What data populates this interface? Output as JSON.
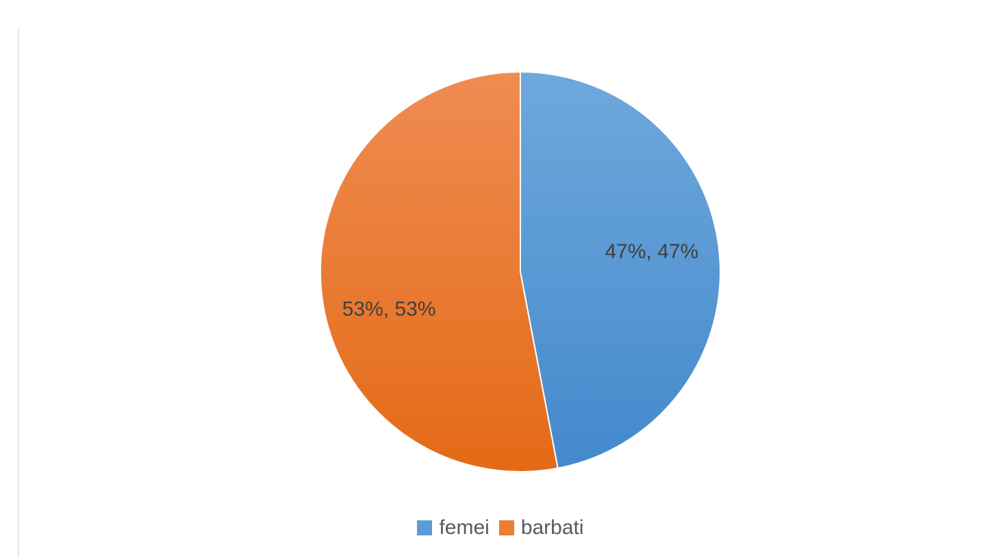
{
  "chart_data": {
    "type": "pie",
    "categories": [
      "femei",
      "barbati"
    ],
    "values": [
      47,
      53
    ],
    "data_labels": [
      "47%, 47%",
      "53%, 53%"
    ],
    "colors": [
      "#5B9BD5",
      "#ED7D31"
    ],
    "legend_position": "bottom"
  },
  "legend": {
    "items": [
      {
        "label": "femei",
        "color": "#5B9BD5"
      },
      {
        "label": "barbati",
        "color": "#ED7D31"
      }
    ]
  }
}
